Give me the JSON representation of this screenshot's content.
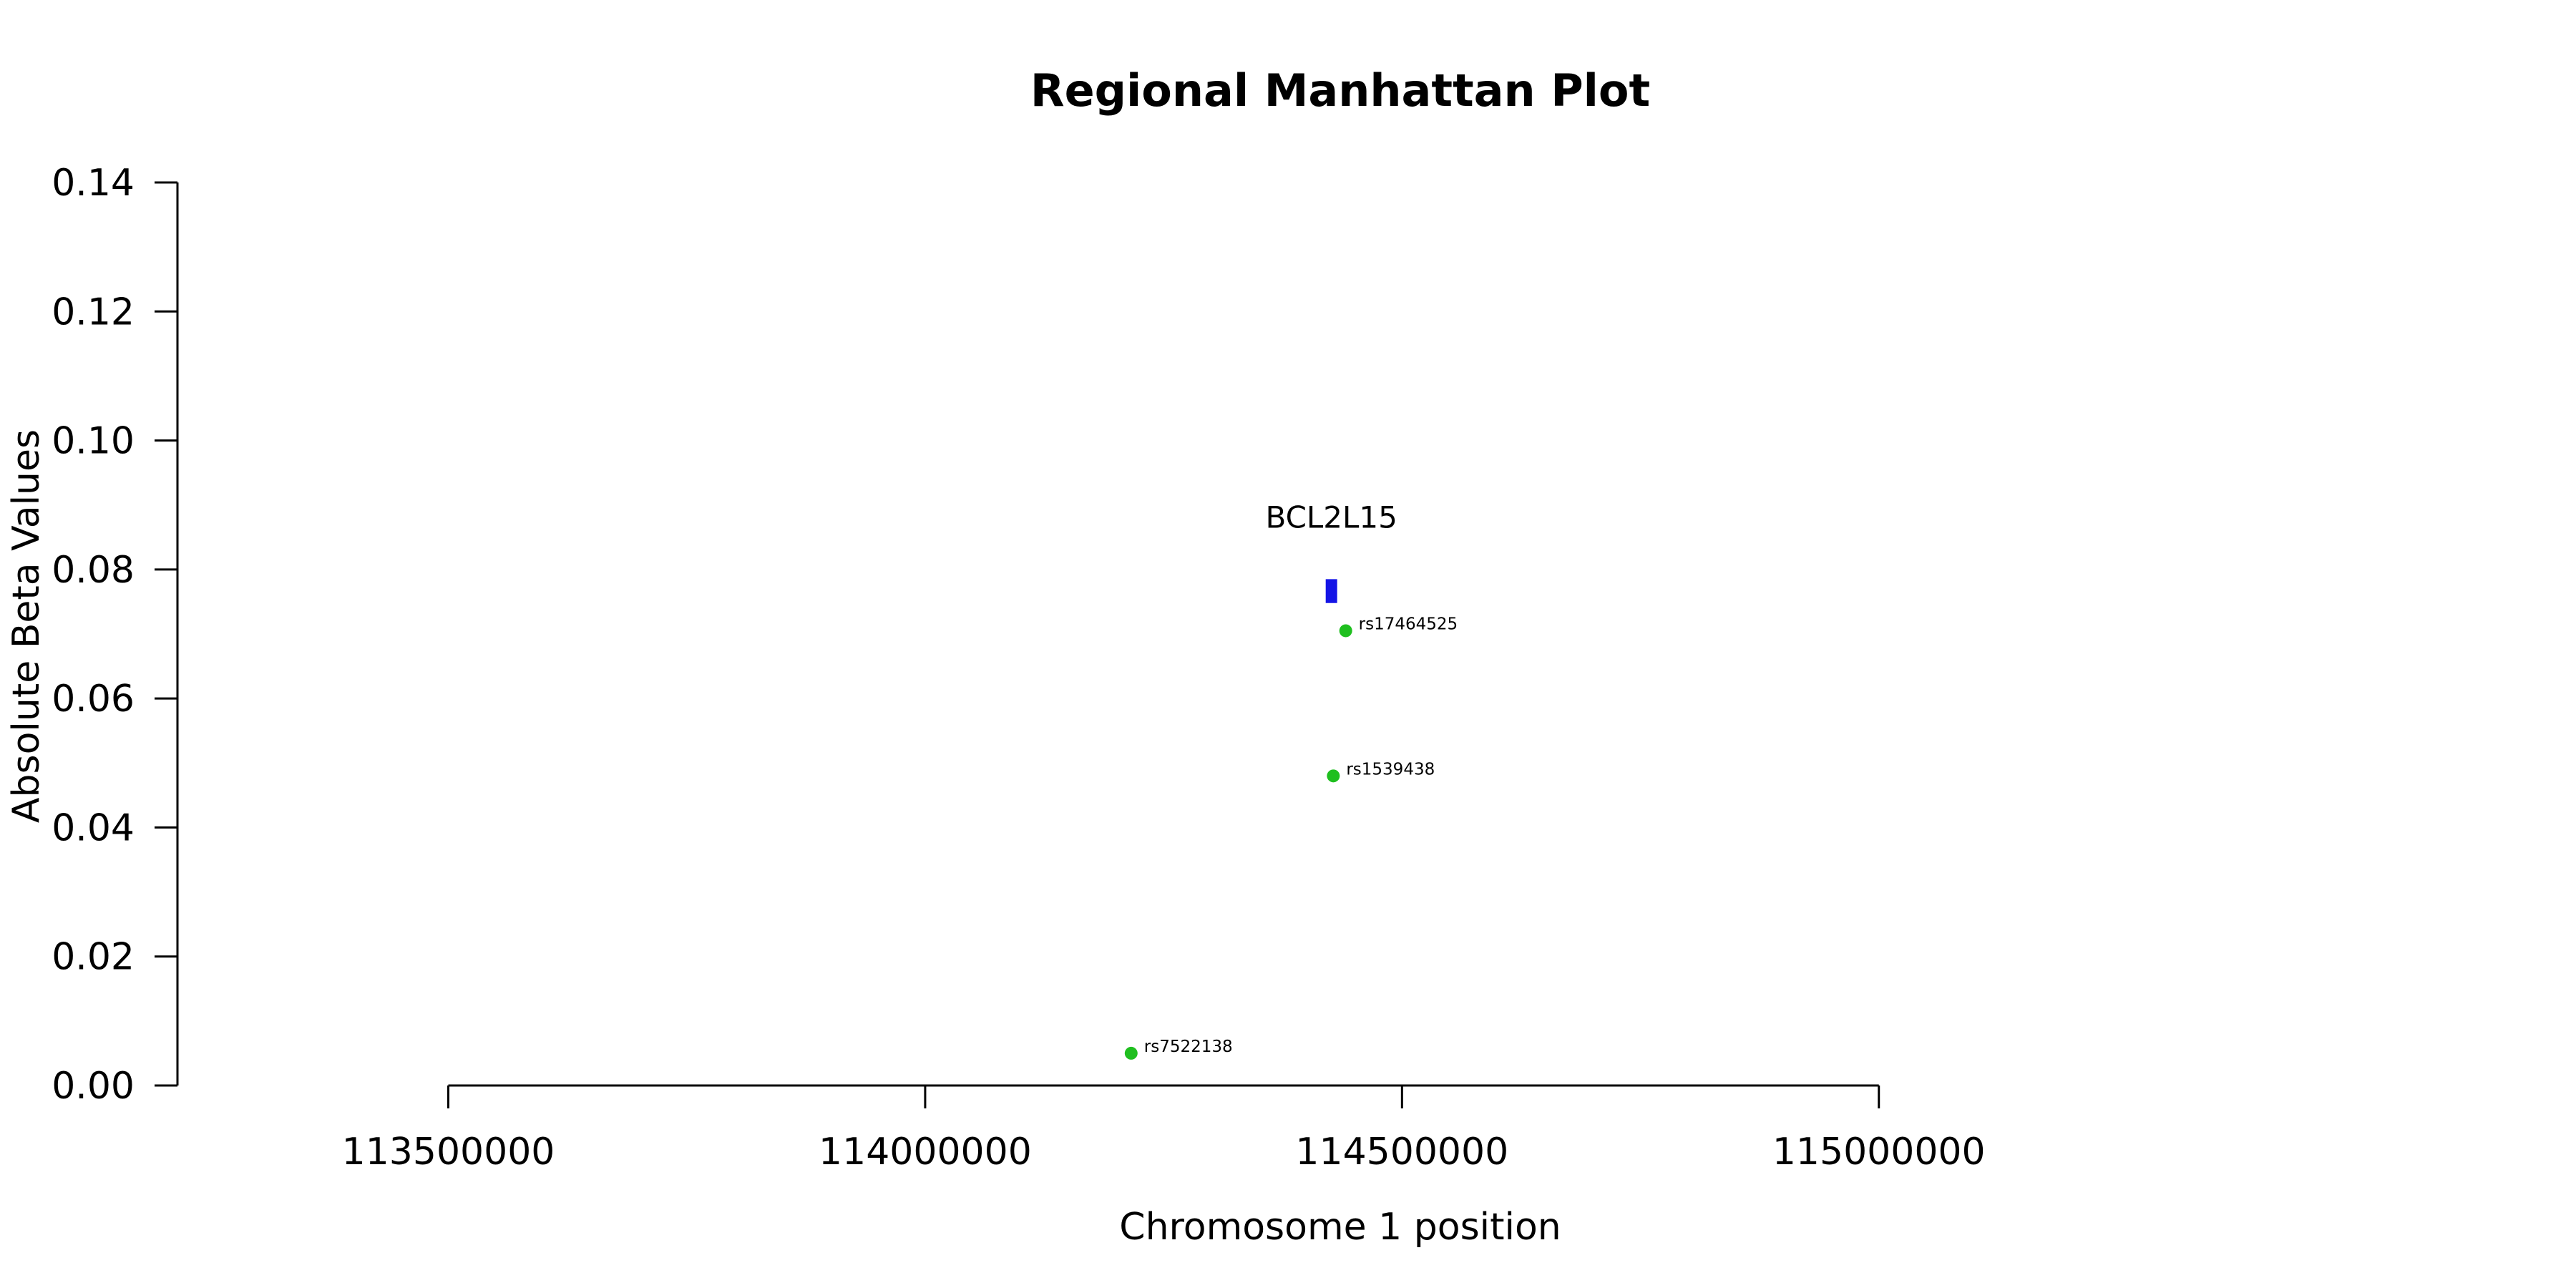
{
  "chart_data": {
    "type": "scatter",
    "title": "Regional Manhattan Plot",
    "xlabel": "Chromosome 1 position",
    "ylabel": "Absolute Beta Values",
    "xlim": [
      113216000,
      115731000
    ],
    "ylim": [
      0,
      0.14
    ],
    "x_ticks": [
      113500000,
      114000000,
      114500000,
      115000000
    ],
    "x_tick_labels": [
      "113500000",
      "114000000",
      "114500000",
      "115000000"
    ],
    "y_ticks": [
      0,
      0.02,
      0.04,
      0.06,
      0.08,
      0.1,
      0.12,
      0.14
    ],
    "y_tick_labels": [
      "0.00",
      "0.02",
      "0.04",
      "0.06",
      "0.08",
      "0.10",
      "0.12",
      "0.14"
    ],
    "grid": false,
    "series": [
      {
        "points": [
          {
            "x": 114216000,
            "y": 0.005,
            "label": "rs7522138"
          },
          {
            "x": 114428000,
            "y": 0.048,
            "label": "rs1539438"
          },
          {
            "x": 114441000,
            "y": 0.0705,
            "label": "rs17464525"
          }
        ],
        "color": "#1fbf1f"
      }
    ],
    "genes": [
      {
        "name": "BCL2L15",
        "start": 114420000,
        "end": 114432000,
        "y_range": [
          0.0748,
          0.0785
        ],
        "color": "#1414e6"
      }
    ]
  }
}
